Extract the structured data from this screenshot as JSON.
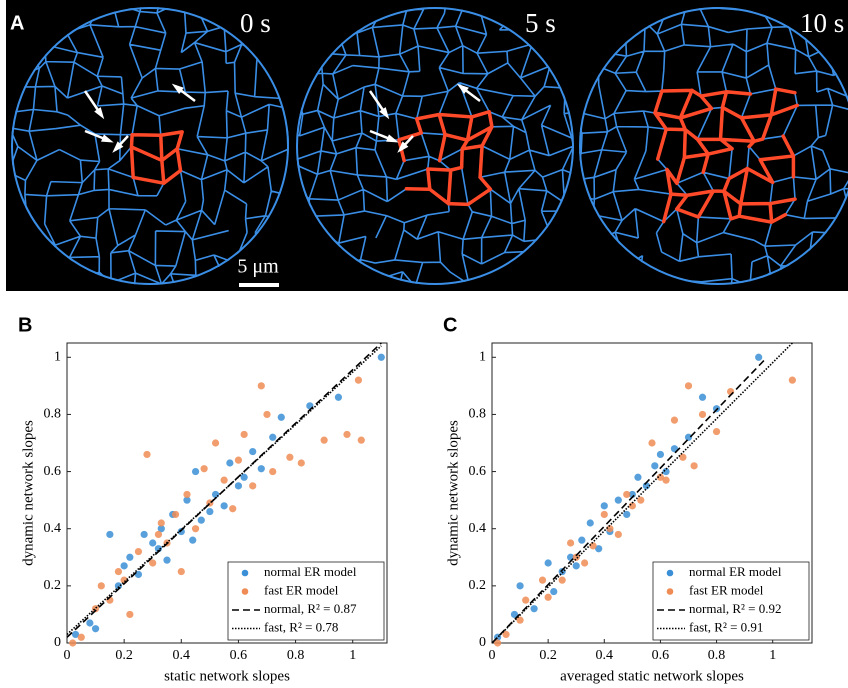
{
  "panel_a": {
    "label": "A",
    "frames": [
      "0 s",
      "5 s",
      "10 s"
    ],
    "scale_bar": "5 μm"
  },
  "chart_data": [
    {
      "type": "scatter",
      "panel_label": "B",
      "xlabel": "static network slopes",
      "ylabel": "dynamic network slopes",
      "xlim": [
        0,
        1.12
      ],
      "ylim": [
        0,
        1.05
      ],
      "xticks": [
        0,
        0.2,
        0.4,
        0.6,
        0.8,
        1
      ],
      "yticks": [
        0,
        0.2,
        0.4,
        0.6,
        0.8,
        1
      ],
      "legend": "lower right",
      "series": [
        {
          "name": "normal ER model",
          "kind": "points",
          "color": "#3a8fd6",
          "x": [
            0.03,
            0.08,
            0.1,
            0.15,
            0.18,
            0.2,
            0.22,
            0.25,
            0.27,
            0.3,
            0.32,
            0.33,
            0.35,
            0.37,
            0.4,
            0.42,
            0.44,
            0.45,
            0.47,
            0.5,
            0.52,
            0.55,
            0.57,
            0.6,
            0.62,
            0.65,
            0.68,
            0.72,
            0.75,
            0.85,
            0.95,
            1.1
          ],
          "values": [
            0.03,
            0.07,
            0.05,
            0.38,
            0.2,
            0.27,
            0.3,
            0.24,
            0.38,
            0.35,
            0.33,
            0.4,
            0.29,
            0.45,
            0.39,
            0.5,
            0.36,
            0.6,
            0.43,
            0.46,
            0.52,
            0.48,
            0.63,
            0.55,
            0.58,
            0.67,
            0.61,
            0.72,
            0.79,
            0.83,
            0.86,
            1.0
          ]
        },
        {
          "name": "fast ER model",
          "kind": "points",
          "color": "#ef8c55",
          "x": [
            0.02,
            0.05,
            0.1,
            0.12,
            0.15,
            0.18,
            0.2,
            0.22,
            0.25,
            0.28,
            0.3,
            0.32,
            0.33,
            0.35,
            0.38,
            0.4,
            0.42,
            0.45,
            0.48,
            0.5,
            0.52,
            0.55,
            0.58,
            0.6,
            0.62,
            0.65,
            0.68,
            0.7,
            0.72,
            0.78,
            0.82,
            0.9,
            0.98,
            1.02,
            1.03
          ],
          "values": [
            0.0,
            0.02,
            0.12,
            0.2,
            0.15,
            0.25,
            0.22,
            0.1,
            0.32,
            0.66,
            0.28,
            0.38,
            0.42,
            0.35,
            0.45,
            0.25,
            0.52,
            0.4,
            0.61,
            0.49,
            0.7,
            0.57,
            0.47,
            0.64,
            0.73,
            0.55,
            0.9,
            0.8,
            0.6,
            0.65,
            0.63,
            0.71,
            0.73,
            0.92,
            0.71
          ]
        },
        {
          "name": "normal, R² = 0.87",
          "kind": "line",
          "style": "dashed",
          "color": "#000000",
          "x": [
            0,
            1.1
          ],
          "values": [
            0.02,
            1.05
          ]
        },
        {
          "name": "fast, R² = 0.78",
          "kind": "line",
          "style": "dotted",
          "color": "#000000",
          "x": [
            0,
            1.1
          ],
          "values": [
            0.03,
            1.04
          ]
        }
      ]
    },
    {
      "type": "scatter",
      "panel_label": "C",
      "xlabel": "averaged static network slopes",
      "ylabel": "dynamic network slopes",
      "xlim": [
        0,
        1.14
      ],
      "ylim": [
        0,
        1.05
      ],
      "xticks": [
        0,
        0.2,
        0.4,
        0.6,
        0.8,
        1
      ],
      "yticks": [
        0,
        0.2,
        0.4,
        0.6,
        0.8,
        1
      ],
      "legend": "lower right",
      "series": [
        {
          "name": "normal ER model",
          "kind": "points",
          "color": "#3a8fd6",
          "x": [
            0.02,
            0.08,
            0.1,
            0.15,
            0.2,
            0.22,
            0.25,
            0.28,
            0.3,
            0.32,
            0.35,
            0.38,
            0.4,
            0.42,
            0.45,
            0.48,
            0.5,
            0.52,
            0.55,
            0.58,
            0.6,
            0.62,
            0.65,
            0.7,
            0.75,
            0.8,
            0.95
          ],
          "values": [
            0.02,
            0.1,
            0.2,
            0.12,
            0.28,
            0.18,
            0.25,
            0.3,
            0.27,
            0.36,
            0.42,
            0.33,
            0.48,
            0.39,
            0.5,
            0.45,
            0.52,
            0.58,
            0.55,
            0.62,
            0.66,
            0.6,
            0.68,
            0.72,
            0.86,
            0.82,
            1.0
          ]
        },
        {
          "name": "fast ER model",
          "kind": "points",
          "color": "#ef8c55",
          "x": [
            0.02,
            0.05,
            0.1,
            0.12,
            0.18,
            0.2,
            0.25,
            0.28,
            0.3,
            0.33,
            0.36,
            0.4,
            0.42,
            0.45,
            0.48,
            0.5,
            0.53,
            0.57,
            0.6,
            0.62,
            0.65,
            0.68,
            0.7,
            0.72,
            0.75,
            0.8,
            0.85,
            1.07
          ],
          "values": [
            0.0,
            0.03,
            0.08,
            0.15,
            0.22,
            0.16,
            0.22,
            0.35,
            0.3,
            0.28,
            0.34,
            0.45,
            0.4,
            0.38,
            0.52,
            0.48,
            0.5,
            0.7,
            0.58,
            0.57,
            0.78,
            0.65,
            0.9,
            0.62,
            0.8,
            0.74,
            0.88,
            0.92
          ]
        },
        {
          "name": "normal, R² = 0.92",
          "kind": "line",
          "style": "dashed",
          "color": "#000000",
          "x": [
            0,
            0.97
          ],
          "values": [
            0,
            0.99
          ]
        },
        {
          "name": "fast, R² = 0.91",
          "kind": "line",
          "style": "dotted",
          "color": "#000000",
          "x": [
            0,
            1.07
          ],
          "values": [
            0,
            1.05
          ]
        }
      ]
    }
  ]
}
